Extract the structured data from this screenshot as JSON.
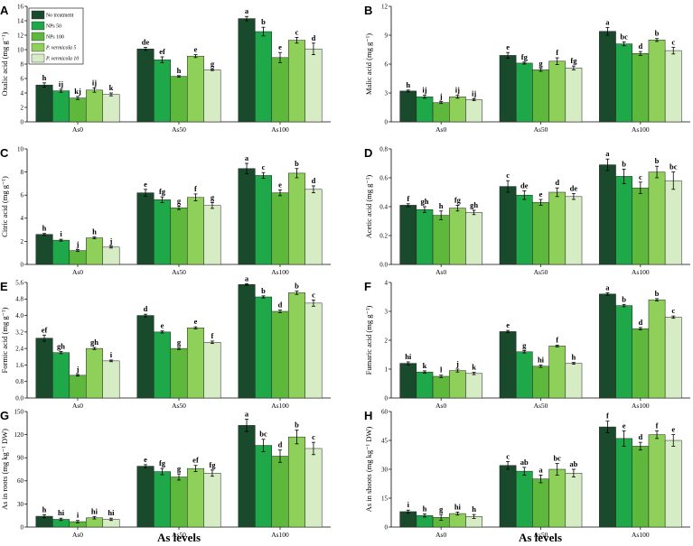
{
  "x_axis_title": "As levels",
  "colors": [
    "#1a4a2c",
    "#1fa84a",
    "#5db83c",
    "#8ed05a",
    "#d6ecc4"
  ],
  "legend": [
    "No treatment",
    "NPs 50",
    "NPs 100",
    "P. vermicola 5",
    "P. vermicola 10"
  ],
  "chart_data": [
    {
      "panel": "A",
      "type": "bar",
      "ylabel": "Oxalic acid (mg g⁻¹)",
      "ylim": [
        0,
        16
      ],
      "ticks": [
        "0",
        "2",
        "4",
        "6",
        "8",
        "10",
        "12",
        "14",
        "16"
      ],
      "categories": [
        "As0",
        "As50",
        "As100"
      ],
      "series_names": [
        "No treatment",
        "NPs 50",
        "NPs 100",
        "P. vermicola 5",
        "P. vermicola 10"
      ],
      "values": [
        [
          5.1,
          4.3,
          3.3,
          4.4,
          3.8
        ],
        [
          10.1,
          8.6,
          6.3,
          9.1,
          7.2
        ],
        [
          14.3,
          12.5,
          8.9,
          11.3,
          10.1
        ]
      ],
      "errors": [
        [
          0.3,
          0.2,
          0.2,
          0.3,
          0.2
        ],
        [
          0.2,
          0.4,
          0.1,
          0.2,
          0.1
        ],
        [
          0.3,
          0.6,
          0.7,
          0.4,
          0.8
        ]
      ],
      "letters": [
        [
          "h",
          "ij",
          "kj",
          "ij",
          "k"
        ],
        [
          "de",
          "ef",
          "h",
          "e",
          "g"
        ],
        [
          "a",
          "b",
          "e",
          "c",
          "d"
        ]
      ]
    },
    {
      "panel": "B",
      "type": "bar",
      "ylabel": "Malic acid (mg g⁻¹)",
      "ylim": [
        0,
        12
      ],
      "ticks": [
        "0",
        "3",
        "6",
        "9",
        "12"
      ],
      "categories": [
        "As0",
        "As50",
        "As100"
      ],
      "series_names": [
        "No treatment",
        "NPs 50",
        "NPs 100",
        "P. vermicola 5",
        "P. vermicola 10"
      ],
      "values": [
        [
          3.2,
          2.6,
          2.0,
          2.6,
          2.3
        ],
        [
          6.9,
          6.1,
          5.4,
          6.3,
          5.6
        ],
        [
          9.4,
          8.1,
          7.1,
          8.5,
          7.4
        ]
      ],
      "errors": [
        [
          0.1,
          0.15,
          0.1,
          0.15,
          0.1
        ],
        [
          0.3,
          0.1,
          0.15,
          0.35,
          0.2
        ],
        [
          0.4,
          0.2,
          0.2,
          0.15,
          0.35
        ]
      ],
      "letters": [
        [
          "h",
          "ij",
          "j",
          "ij",
          "ij"
        ],
        [
          "e",
          "fg",
          "g",
          "f",
          "fg"
        ],
        [
          "a",
          "bc",
          "d",
          "b",
          "c"
        ]
      ]
    },
    {
      "panel": "C",
      "type": "bar",
      "ylabel": "Citric acid (mg g⁻¹)",
      "ylim": [
        0,
        10
      ],
      "ticks": [
        "0",
        "2",
        "4",
        "6",
        "8",
        "10"
      ],
      "categories": [
        "As0",
        "As50",
        "As100"
      ],
      "series_names": [
        "No treatment",
        "NPs 50",
        "NPs 100",
        "P. vermicola 5",
        "P. vermicola 10"
      ],
      "values": [
        [
          2.6,
          2.1,
          1.2,
          2.3,
          1.5
        ],
        [
          6.2,
          5.6,
          4.9,
          5.8,
          5.1
        ],
        [
          8.3,
          7.7,
          6.2,
          7.9,
          6.5
        ]
      ],
      "errors": [
        [
          0.08,
          0.08,
          0.08,
          0.08,
          0.08
        ],
        [
          0.3,
          0.25,
          0.15,
          0.3,
          0.25
        ],
        [
          0.45,
          0.25,
          0.25,
          0.4,
          0.3
        ]
      ],
      "letters": [
        [
          "h",
          "i",
          "j",
          "h",
          "j"
        ],
        [
          "e",
          "fg",
          "g",
          "f",
          "g"
        ],
        [
          "a",
          "c",
          "e",
          "b",
          "d"
        ]
      ]
    },
    {
      "panel": "D",
      "type": "bar",
      "ylabel": "Acetic acid (mg g⁻¹)",
      "ylim": [
        0,
        0.8
      ],
      "ticks": [
        "0.0",
        "0.2",
        "0.4",
        "0.6",
        "0.8"
      ],
      "categories": [
        "As0",
        "As50",
        "As100"
      ],
      "series_names": [
        "No treatment",
        "NPs 50",
        "NPs 100",
        "P. vermicola 5",
        "P. vermicola 10"
      ],
      "values": [
        [
          0.41,
          0.38,
          0.34,
          0.39,
          0.36
        ],
        [
          0.54,
          0.48,
          0.43,
          0.5,
          0.47
        ],
        [
          0.69,
          0.61,
          0.53,
          0.64,
          0.58
        ]
      ],
      "errors": [
        [
          0.01,
          0.02,
          0.03,
          0.02,
          0.015
        ],
        [
          0.04,
          0.03,
          0.02,
          0.03,
          0.02
        ],
        [
          0.04,
          0.05,
          0.04,
          0.04,
          0.06
        ]
      ],
      "letters": [
        [
          "f",
          "gh",
          "h",
          "fg",
          "gh"
        ],
        [
          "c",
          "de",
          "e",
          "d",
          "de"
        ],
        [
          "a",
          "b",
          "c",
          "b",
          "bc"
        ]
      ]
    },
    {
      "panel": "E",
      "type": "bar",
      "ylabel": "Formic acid (mg g⁻¹)",
      "ylim": [
        0,
        5.6
      ],
      "ticks": [
        "0.0",
        "0.8",
        "1.6",
        "2.4",
        "3.2",
        "4.0",
        "4.8",
        "5.6"
      ],
      "categories": [
        "As0",
        "As50",
        "As100"
      ],
      "series_names": [
        "No treatment",
        "NPs 50",
        "NPs 100",
        "P. vermicola 5",
        "P. vermicola 10"
      ],
      "values": [
        [
          2.9,
          2.2,
          1.1,
          2.4,
          1.8
        ],
        [
          4.0,
          3.2,
          2.4,
          3.4,
          2.7
        ],
        [
          5.5,
          4.9,
          4.2,
          5.1,
          4.6
        ]
      ],
      "errors": [
        [
          0.15,
          0.05,
          0.04,
          0.05,
          0.04
        ],
        [
          0.06,
          0.05,
          0.05,
          0.05,
          0.06
        ],
        [
          0.04,
          0.05,
          0.06,
          0.08,
          0.15
        ]
      ],
      "letters": [
        [
          "ef",
          "gh",
          "j",
          "gh",
          "i"
        ],
        [
          "d",
          "e",
          "g",
          "e",
          "f"
        ],
        [
          "a",
          "b",
          "d",
          "b",
          "c"
        ]
      ]
    },
    {
      "panel": "F",
      "type": "bar",
      "ylabel": "Fumaric acid (mg g⁻¹)",
      "ylim": [
        0,
        4
      ],
      "ticks": [
        "0",
        "1",
        "2",
        "3",
        "4"
      ],
      "categories": [
        "As0",
        "As50",
        "As100"
      ],
      "series_names": [
        "No treatment",
        "NPs 50",
        "NPs 100",
        "P. vermicola 5",
        "P. vermicola 10"
      ],
      "values": [
        [
          1.2,
          0.9,
          0.75,
          0.95,
          0.85
        ],
        [
          2.3,
          1.6,
          1.1,
          1.8,
          1.2
        ],
        [
          3.6,
          3.2,
          2.4,
          3.4,
          2.8
        ]
      ],
      "errors": [
        [
          0.05,
          0.04,
          0.04,
          0.05,
          0.04
        ],
        [
          0.04,
          0.04,
          0.04,
          0.03,
          0.03
        ],
        [
          0.04,
          0.04,
          0.04,
          0.04,
          0.04
        ]
      ],
      "letters": [
        [
          "hi",
          "k",
          "l",
          "j",
          "k"
        ],
        [
          "e",
          "g",
          "hi",
          "f",
          "h"
        ],
        [
          "a",
          "b",
          "d",
          "b",
          "c"
        ]
      ]
    },
    {
      "panel": "G",
      "type": "bar",
      "ylabel": "As in roots (mg kg⁻¹ DW)",
      "ylim": [
        0,
        150
      ],
      "ticks": [
        "0",
        "30",
        "60",
        "90",
        "120",
        "150"
      ],
      "categories": [
        "As0",
        "As50",
        "As100"
      ],
      "series_names": [
        "No treatment",
        "NPs 50",
        "NPs 100",
        "P. vermicola 5",
        "P. vermicola 10"
      ],
      "values": [
        [
          14,
          10,
          7,
          12,
          10
        ],
        [
          79,
          72,
          65,
          76,
          70
        ],
        [
          132,
          106,
          92,
          117,
          102
        ]
      ],
      "errors": [
        [
          2,
          1.5,
          1.5,
          1.5,
          1.5
        ],
        [
          2,
          4,
          4,
          4,
          4
        ],
        [
          8,
          8,
          8,
          9,
          8
        ]
      ],
      "letters": [
        [
          "h",
          "hi",
          "i",
          "hi",
          "hi"
        ],
        [
          "e",
          "fg",
          "g",
          "ef",
          "fg"
        ],
        [
          "a",
          "bc",
          "d",
          "b",
          "c"
        ]
      ]
    },
    {
      "panel": "H",
      "type": "bar",
      "ylabel": "As in shoots (mg kg⁻¹ DW)",
      "ylim": [
        0,
        60
      ],
      "ticks": [
        "0",
        "15",
        "30",
        "45",
        "60"
      ],
      "categories": [
        "As0",
        "As50",
        "As100"
      ],
      "series_names": [
        "No treatment",
        "NPs 50",
        "NPs 100",
        "P. vermicola 5",
        "P. vermicola 10"
      ],
      "values": [
        [
          8,
          6,
          5,
          7,
          5.5
        ],
        [
          32,
          29,
          25,
          30,
          28
        ],
        [
          52,
          46,
          42,
          48,
          45
        ]
      ],
      "errors": [
        [
          0.8,
          0.8,
          1.5,
          0.8,
          1
        ],
        [
          2,
          2,
          2,
          3,
          2
        ],
        [
          3,
          4,
          2,
          2,
          3
        ]
      ],
      "letters": [
        [
          "i",
          "h",
          "g",
          "hi",
          "h"
        ],
        [
          "c",
          "ab",
          "a",
          "bc",
          "ab"
        ],
        [
          "f",
          "e",
          "d",
          "f",
          "e"
        ]
      ]
    }
  ]
}
